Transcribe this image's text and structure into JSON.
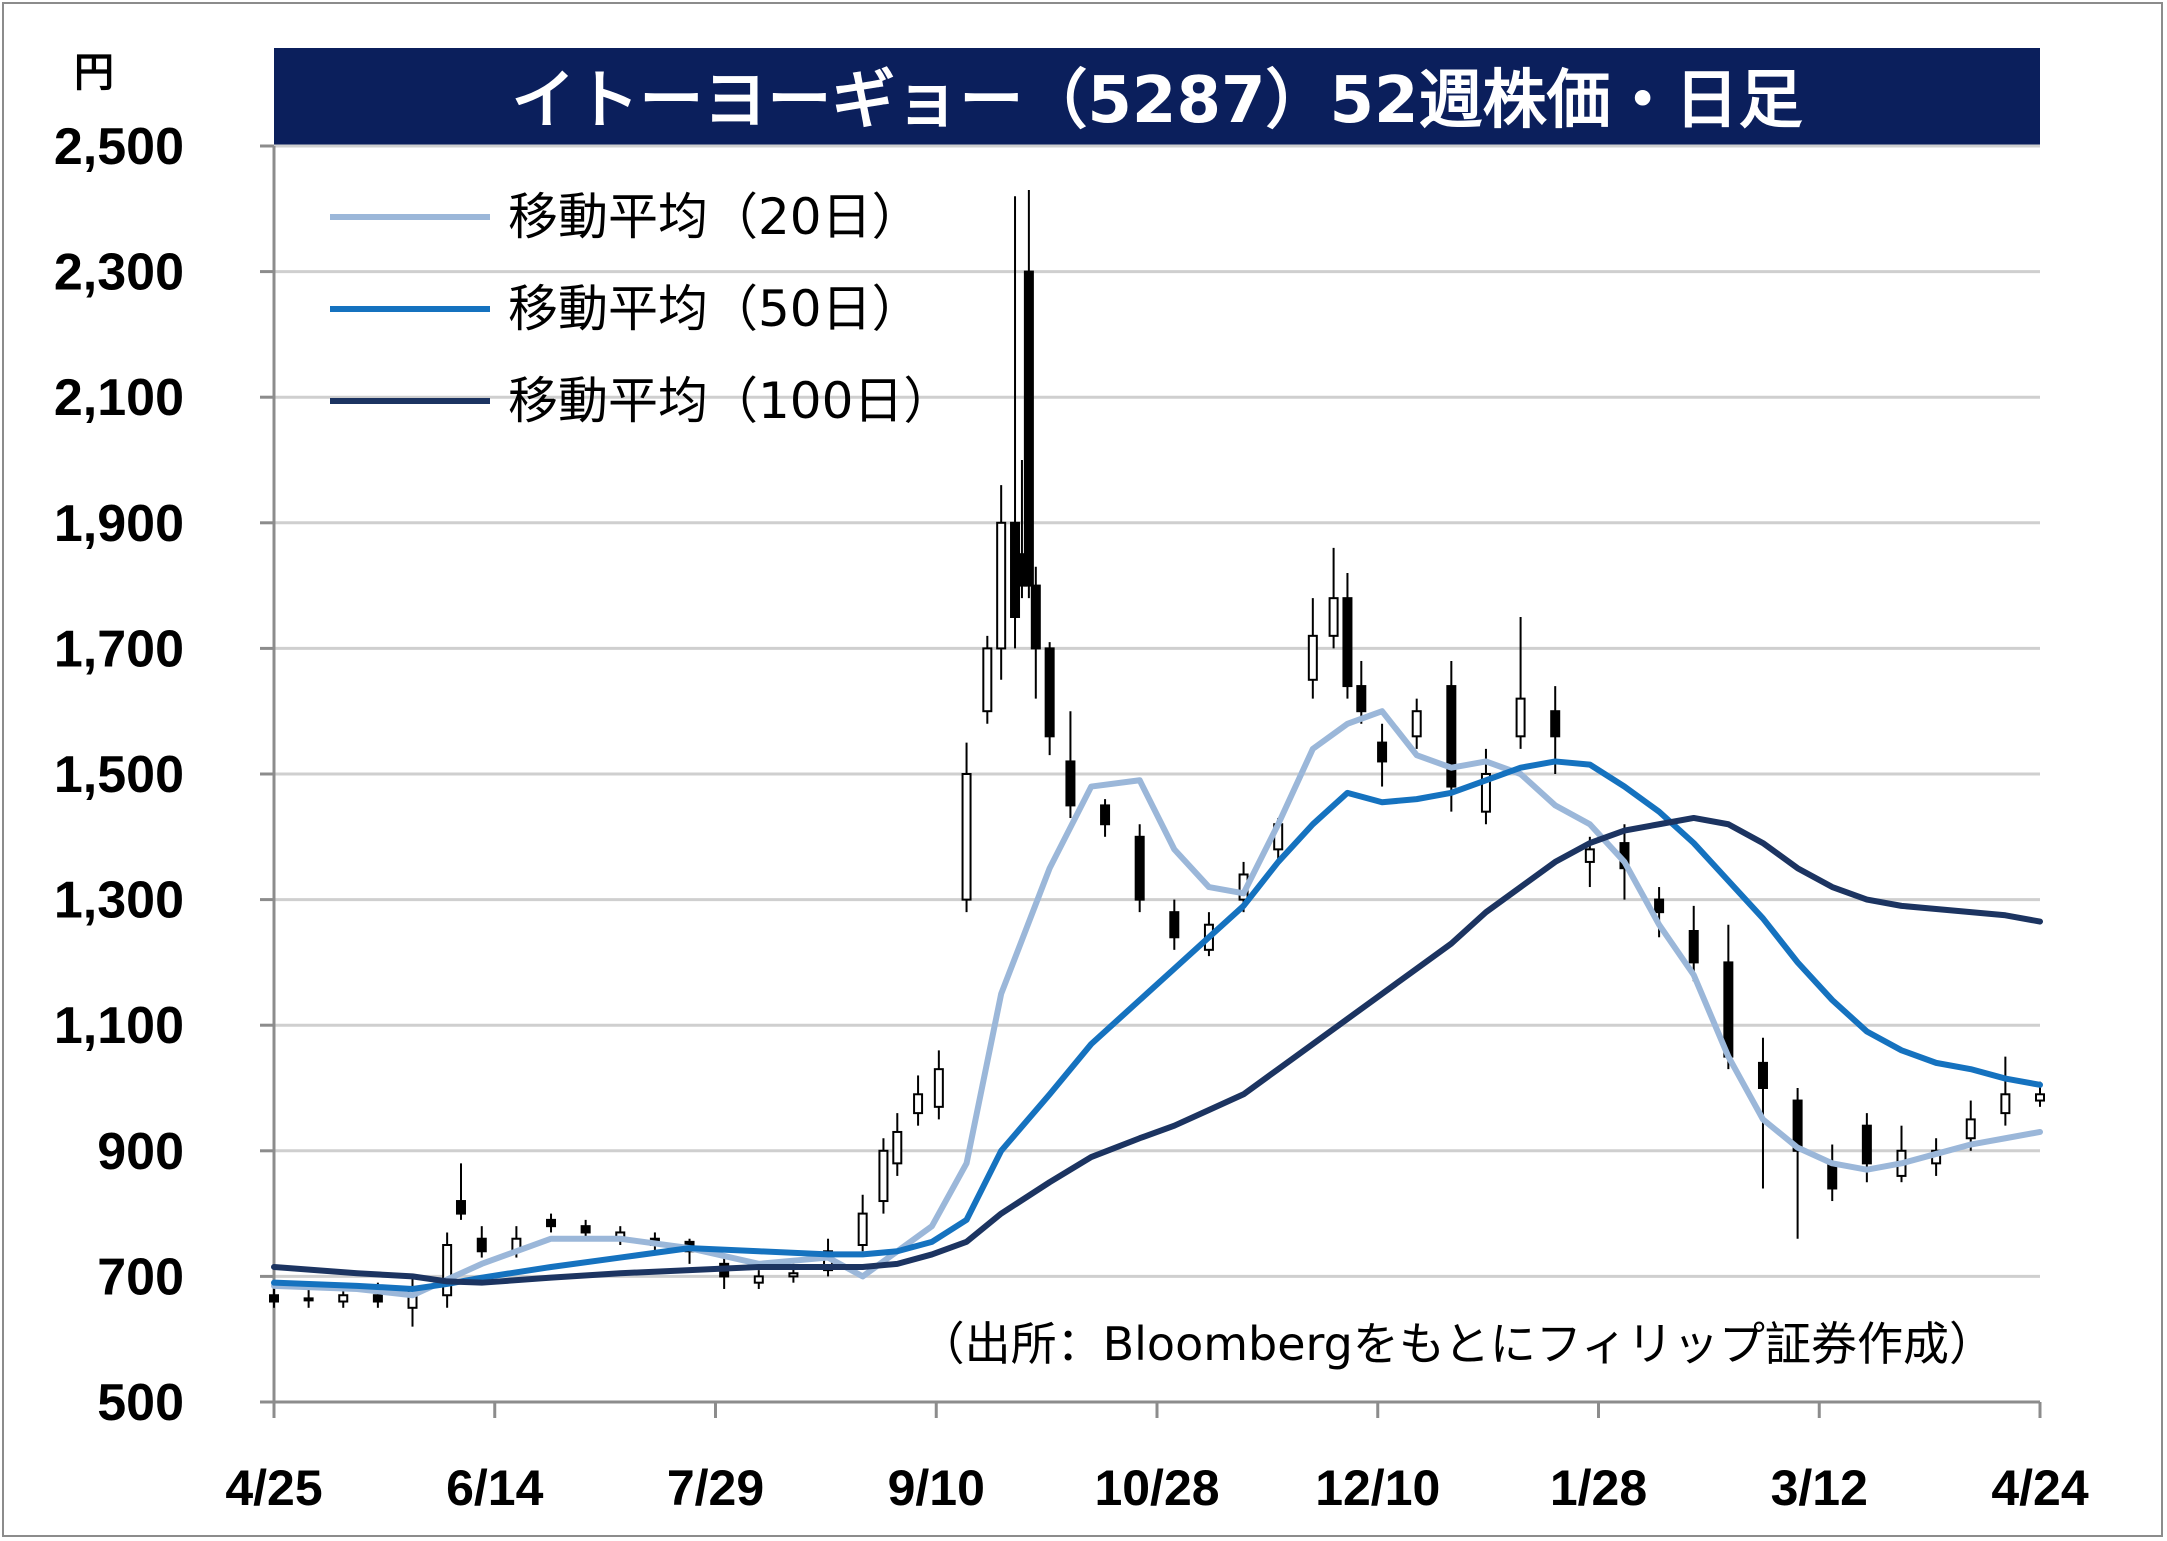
{
  "chart_data": {
    "type": "line",
    "title": "イトーヨーギョー（5287）52週株価・日足",
    "y_unit": "円",
    "ylim": [
      500,
      2500
    ],
    "yticks": [
      "2,500",
      "2,300",
      "2,100",
      "1,900",
      "1,700",
      "1,500",
      "1,300",
      "1,100",
      "900",
      "700",
      "500"
    ],
    "ytick_values": [
      2500,
      2300,
      2100,
      1900,
      1700,
      1500,
      1300,
      1100,
      900,
      700,
      500
    ],
    "xticks": [
      "4/25",
      "6/14",
      "7/29",
      "9/10",
      "10/28",
      "12/10",
      "1/28",
      "3/12",
      "4/24"
    ],
    "grid": true,
    "legend_position": "top-left",
    "source": "（出所：Bloombergをもとにフィリップ証券作成）",
    "colors": {
      "title_bg": "#0b1f5c",
      "ma20": "#9bb7d9",
      "ma50": "#1572bf",
      "ma100": "#1c3461",
      "candle": "#000000",
      "grid": "#cfcfcf"
    },
    "series": [
      {
        "name": "移動平均（20日）",
        "x": [
          0,
          12,
          20,
          25,
          30,
          40,
          50,
          60,
          70,
          80,
          85,
          90,
          95,
          100,
          105,
          112,
          118,
          125,
          130,
          135,
          140,
          145,
          150,
          155,
          160,
          165,
          170,
          175,
          180,
          185,
          190,
          195,
          200,
          205,
          210,
          215,
          220,
          225,
          230,
          235,
          240,
          245,
          250,
          255
        ],
        "values": [
          685,
          680,
          670,
          695,
          720,
          760,
          760,
          745,
          720,
          730,
          700,
          740,
          780,
          880,
          1150,
          1350,
          1480,
          1490,
          1380,
          1320,
          1310,
          1420,
          1540,
          1580,
          1600,
          1530,
          1510,
          1520,
          1500,
          1450,
          1420,
          1360,
          1260,
          1180,
          1050,
          950,
          905,
          880,
          870,
          880,
          895,
          910,
          920,
          930
        ]
      },
      {
        "name": "移動平均（50日）",
        "x": [
          0,
          12,
          20,
          25,
          30,
          40,
          50,
          60,
          70,
          80,
          85,
          90,
          95,
          100,
          105,
          112,
          118,
          125,
          130,
          135,
          140,
          145,
          150,
          155,
          160,
          165,
          170,
          175,
          180,
          185,
          190,
          195,
          200,
          205,
          210,
          215,
          220,
          225,
          230,
          235,
          240,
          245,
          250,
          255
        ],
        "values": [
          690,
          685,
          680,
          688,
          698,
          715,
          730,
          745,
          740,
          735,
          735,
          740,
          755,
          790,
          900,
          990,
          1070,
          1140,
          1190,
          1240,
          1290,
          1360,
          1420,
          1470,
          1455,
          1460,
          1470,
          1490,
          1510,
          1520,
          1515,
          1480,
          1440,
          1390,
          1330,
          1270,
          1200,
          1140,
          1090,
          1060,
          1040,
          1030,
          1015,
          1005
        ]
      },
      {
        "name": "移動平均（100日）",
        "x": [
          0,
          12,
          20,
          25,
          30,
          40,
          50,
          60,
          70,
          80,
          85,
          90,
          95,
          100,
          105,
          112,
          118,
          125,
          130,
          135,
          140,
          145,
          150,
          155,
          160,
          165,
          170,
          175,
          180,
          185,
          190,
          195,
          200,
          205,
          210,
          215,
          220,
          225,
          230,
          235,
          240,
          245,
          250,
          255
        ],
        "values": [
          715,
          705,
          700,
          692,
          690,
          698,
          705,
          710,
          715,
          715,
          715,
          720,
          735,
          755,
          800,
          850,
          890,
          920,
          940,
          965,
          990,
          1030,
          1070,
          1110,
          1150,
          1190,
          1230,
          1280,
          1320,
          1360,
          1390,
          1410,
          1420,
          1430,
          1420,
          1390,
          1350,
          1320,
          1300,
          1290,
          1285,
          1280,
          1275,
          1265
        ]
      }
    ],
    "candles": {
      "note": "daily OHLC, x = trading-day index (0 = 4/25, 255 = 4/24)",
      "x": [
        0,
        5,
        10,
        15,
        20,
        25,
        27,
        30,
        35,
        40,
        45,
        50,
        55,
        60,
        65,
        70,
        75,
        80,
        85,
        88,
        90,
        93,
        96,
        100,
        103,
        105,
        107,
        108,
        109,
        110,
        112,
        115,
        120,
        125,
        130,
        135,
        140,
        145,
        150,
        153,
        155,
        157,
        160,
        165,
        170,
        175,
        180,
        185,
        190,
        195,
        200,
        205,
        210,
        215,
        220,
        225,
        230,
        235,
        240,
        245,
        250,
        255
      ],
      "open": [
        670,
        665,
        660,
        670,
        650,
        670,
        820,
        760,
        740,
        790,
        780,
        760,
        760,
        755,
        720,
        690,
        700,
        710,
        750,
        820,
        880,
        960,
        970,
        1300,
        1600,
        1700,
        1900,
        1850,
        2300,
        1800,
        1700,
        1520,
        1450,
        1400,
        1280,
        1220,
        1300,
        1380,
        1650,
        1720,
        1780,
        1640,
        1550,
        1560,
        1640,
        1440,
        1560,
        1600,
        1360,
        1390,
        1300,
        1250,
        1200,
        1040,
        980,
        880,
        940,
        860,
        880,
        920,
        960,
        980
      ],
      "close": [
        660,
        665,
        670,
        660,
        680,
        750,
        800,
        740,
        760,
        780,
        770,
        770,
        750,
        740,
        700,
        700,
        705,
        740,
        800,
        900,
        930,
        990,
        1030,
        1500,
        1700,
        1900,
        1750,
        1800,
        1800,
        1700,
        1560,
        1450,
        1420,
        1300,
        1240,
        1260,
        1340,
        1420,
        1720,
        1780,
        1640,
        1600,
        1520,
        1600,
        1480,
        1500,
        1620,
        1560,
        1380,
        1350,
        1280,
        1200,
        1050,
        1000,
        900,
        840,
        880,
        900,
        900,
        950,
        990,
        990
      ],
      "high": [
        690,
        680,
        690,
        690,
        700,
        770,
        880,
        780,
        780,
        800,
        790,
        780,
        770,
        760,
        730,
        710,
        720,
        760,
        830,
        920,
        960,
        1020,
        1060,
        1550,
        1720,
        1960,
        2420,
        2000,
        2430,
        1830,
        1710,
        1600,
        1460,
        1420,
        1300,
        1280,
        1360,
        1430,
        1780,
        1860,
        1820,
        1680,
        1580,
        1620,
        1680,
        1540,
        1750,
        1640,
        1400,
        1420,
        1320,
        1290,
        1260,
        1080,
        1000,
        910,
        960,
        940,
        920,
        980,
        1050,
        1010
      ],
      "low": [
        650,
        650,
        650,
        650,
        620,
        650,
        790,
        730,
        730,
        770,
        760,
        750,
        740,
        720,
        680,
        680,
        690,
        700,
        740,
        800,
        860,
        940,
        950,
        1280,
        1580,
        1650,
        1700,
        1780,
        1780,
        1620,
        1530,
        1430,
        1400,
        1280,
        1220,
        1210,
        1280,
        1360,
        1620,
        1700,
        1620,
        1580,
        1480,
        1540,
        1440,
        1420,
        1540,
        1500,
        1320,
        1300,
        1240,
        1170,
        1030,
        840,
        760,
        820,
        850,
        850,
        860,
        900,
        940,
        970
      ]
    }
  },
  "legend": [
    {
      "label": "移動平均（20日）",
      "color": "#9bb7d9"
    },
    {
      "label": "移動平均（50日）",
      "color": "#1572bf"
    },
    {
      "label": "移動平均（100日）",
      "color": "#1c3461"
    }
  ]
}
